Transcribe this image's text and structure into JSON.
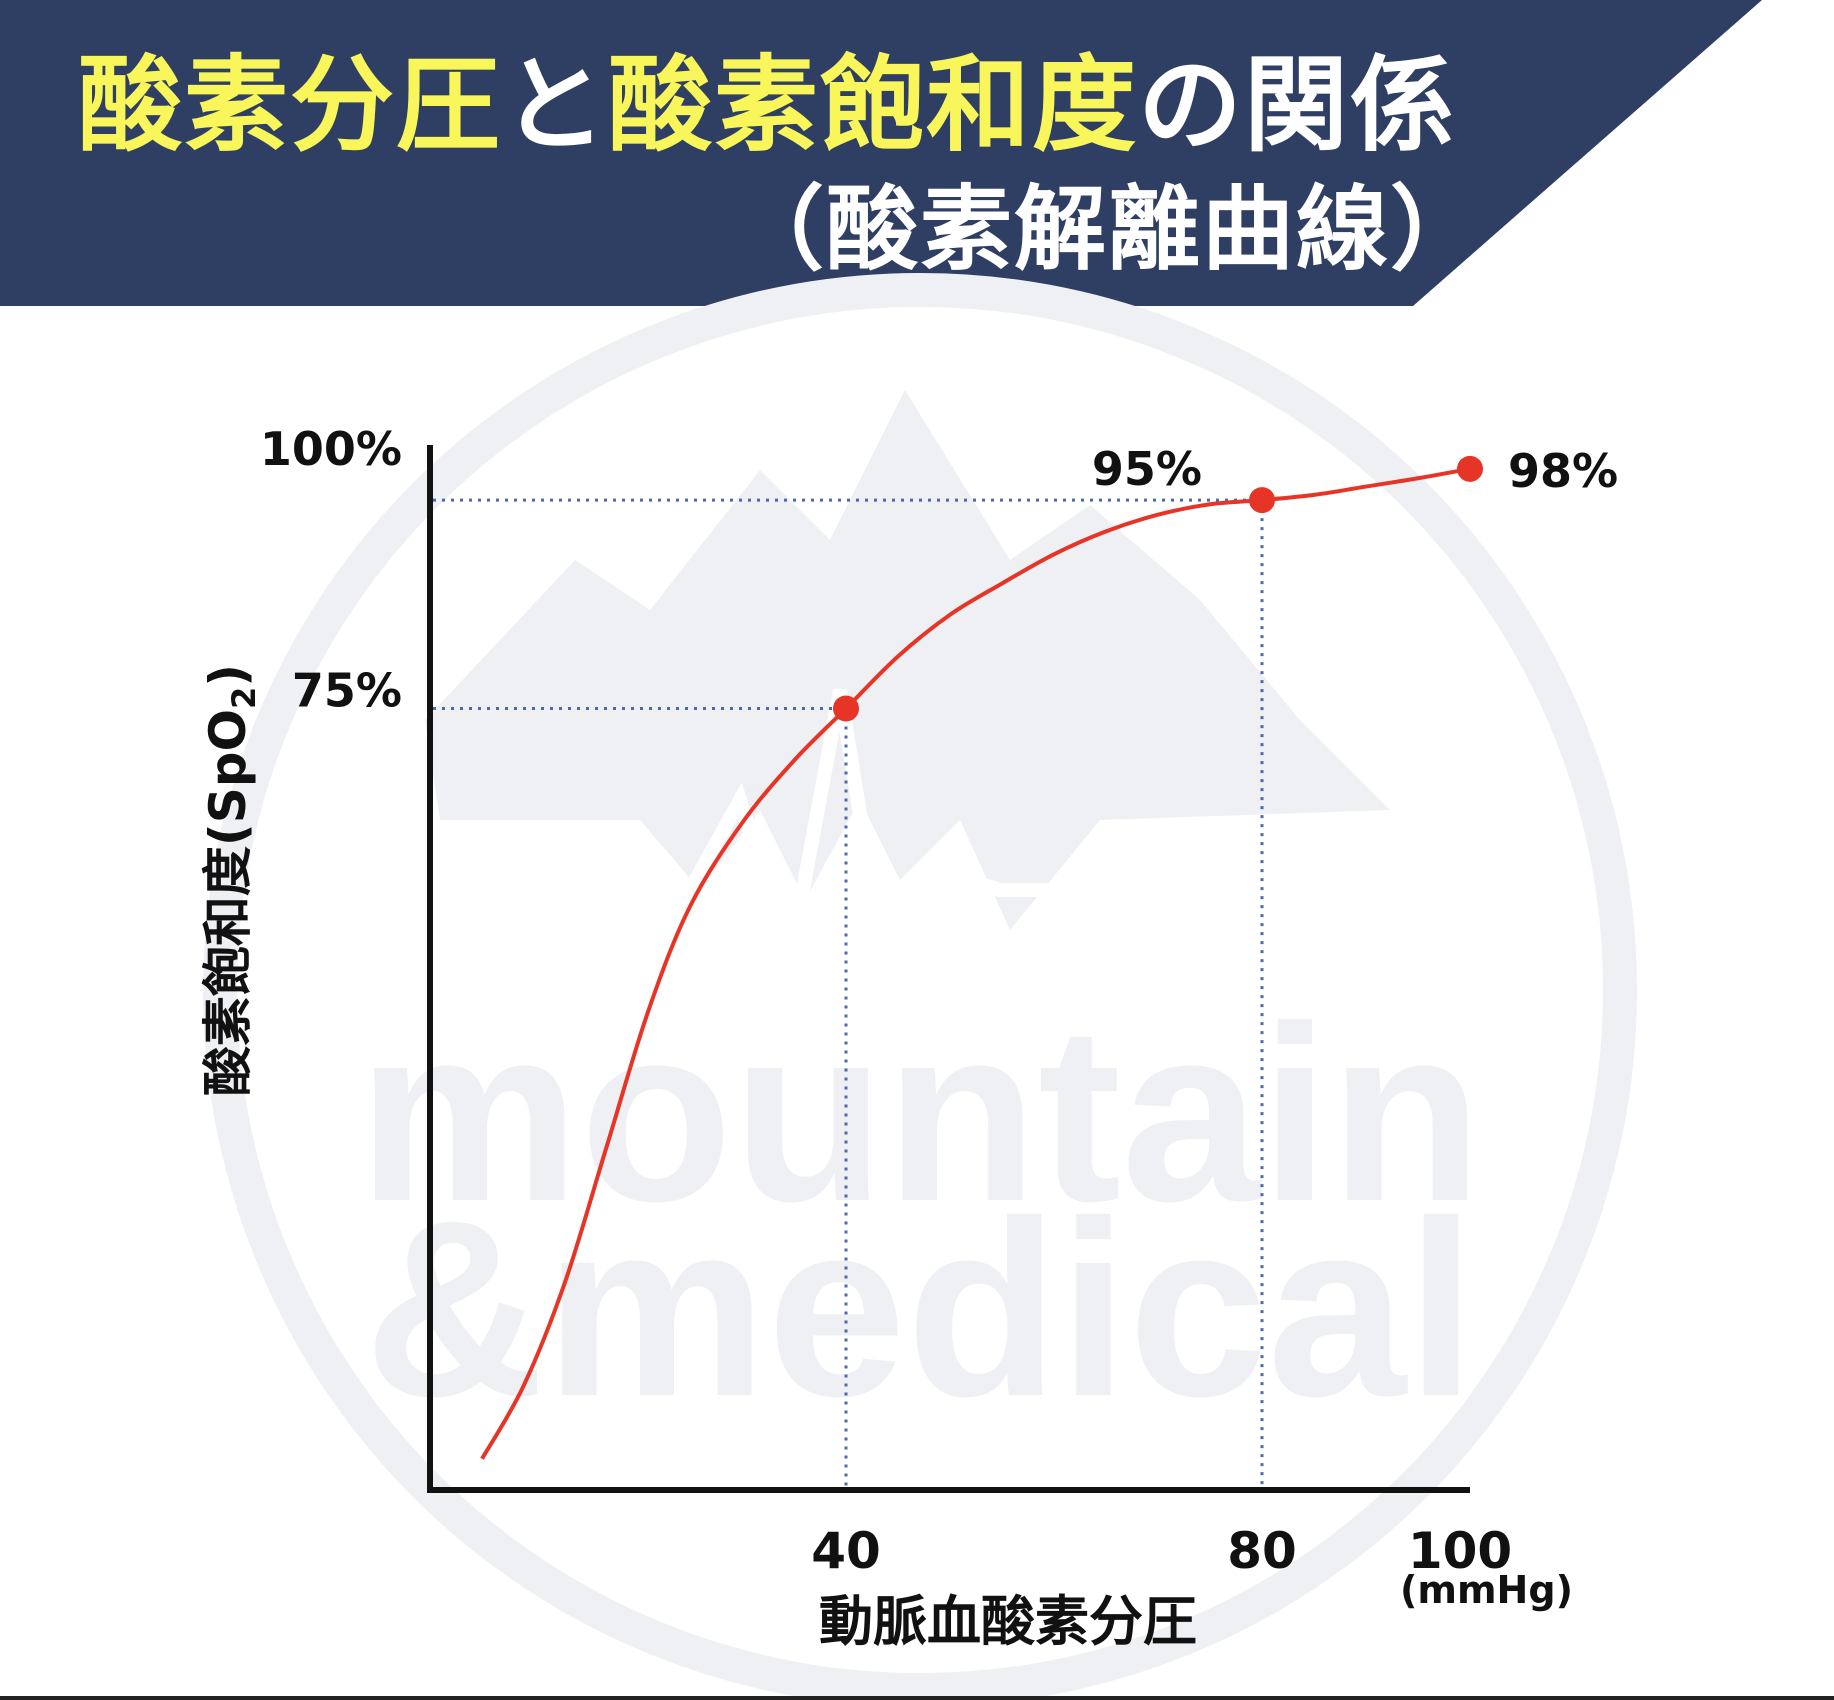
{
  "header": {
    "title_part1": "酸素分圧",
    "title_part2": "と",
    "title_part3": "酸素飽和度",
    "title_part4": "の関係",
    "subtitle": "（酸素解離曲線）",
    "background_color": "#2f3f63",
    "highlight_color": "#f8f65a"
  },
  "watermark": {
    "line1": "mountain",
    "line2": "&medical"
  },
  "chart_data": {
    "type": "line",
    "ylabel_main": "酸素飽和度(SpO",
    "ylabel_sub": "2",
    "ylabel_end": ")",
    "xlabel": "動脈血酸素分圧",
    "xunit": "(mmHg)",
    "x_ticks": [
      {
        "value": 40,
        "label": "40"
      },
      {
        "value": 80,
        "label": "80"
      },
      {
        "value": 100,
        "label": "100"
      }
    ],
    "y_ticks": [
      {
        "value": 75,
        "label": "75%"
      },
      {
        "value": 100,
        "label": "100%"
      }
    ],
    "xlim": [
      0,
      100
    ],
    "ylim": [
      0,
      100
    ],
    "series_color": "#e63527",
    "curve": [
      {
        "x": 5,
        "y": 3
      },
      {
        "x": 9,
        "y": 10
      },
      {
        "x": 13,
        "y": 20
      },
      {
        "x": 17,
        "y": 33
      },
      {
        "x": 21,
        "y": 46
      },
      {
        "x": 25,
        "y": 56
      },
      {
        "x": 30,
        "y": 64
      },
      {
        "x": 35,
        "y": 70
      },
      {
        "x": 40,
        "y": 75
      },
      {
        "x": 45,
        "y": 80
      },
      {
        "x": 50,
        "y": 84
      },
      {
        "x": 55,
        "y": 87
      },
      {
        "x": 60,
        "y": 89.8
      },
      {
        "x": 65,
        "y": 92
      },
      {
        "x": 70,
        "y": 93.6
      },
      {
        "x": 75,
        "y": 94.6
      },
      {
        "x": 80,
        "y": 95
      },
      {
        "x": 85,
        "y": 95.5
      },
      {
        "x": 90,
        "y": 96.3
      },
      {
        "x": 95,
        "y": 97.1
      },
      {
        "x": 100,
        "y": 98
      }
    ],
    "points": [
      {
        "x": 40,
        "y": 75,
        "label": "75%",
        "guide_label": "75%"
      },
      {
        "x": 80,
        "y": 95,
        "label": "95%"
      },
      {
        "x": 100,
        "y": 98,
        "label": "98%"
      }
    ]
  }
}
